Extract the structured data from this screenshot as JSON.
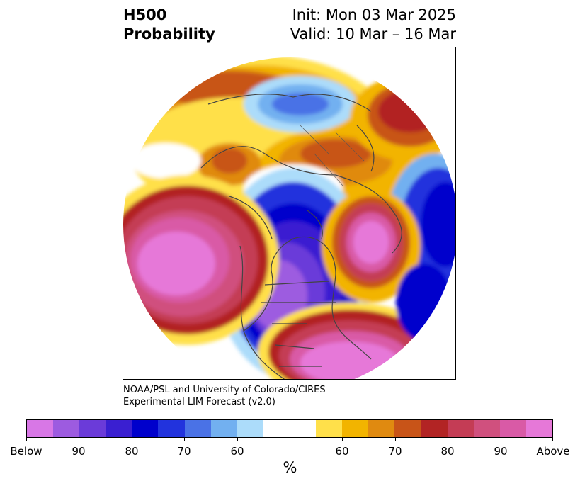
{
  "header": {
    "title_line1": "H500",
    "title_line2": "Probability",
    "init": "Init: Mon 03 Mar 2025",
    "valid": "Valid: 10 Mar – 16 Mar"
  },
  "credit": {
    "line1": "NOAA/PSL and University of Colorado/CIRES",
    "line2": "Experimental LIM Forecast (v2.0)"
  },
  "colorbar": {
    "colors": [
      "#d877e6",
      "#9d5be0",
      "#6b3bd9",
      "#3a1fd1",
      "#0000cc",
      "#2233dd",
      "#4a72e6",
      "#72b0f0",
      "#acdcfa",
      "#ffffff",
      "#ffffff",
      "#ffe04a",
      "#f2b400",
      "#e08a10",
      "#c85418",
      "#b22424",
      "#c43c55",
      "#d0507e",
      "#d95aa6",
      "#e678d8"
    ],
    "labels": [
      "Below",
      "90",
      "80",
      "70",
      "60",
      "60",
      "70",
      "80",
      "90",
      "Above"
    ],
    "unit": "%"
  }
}
